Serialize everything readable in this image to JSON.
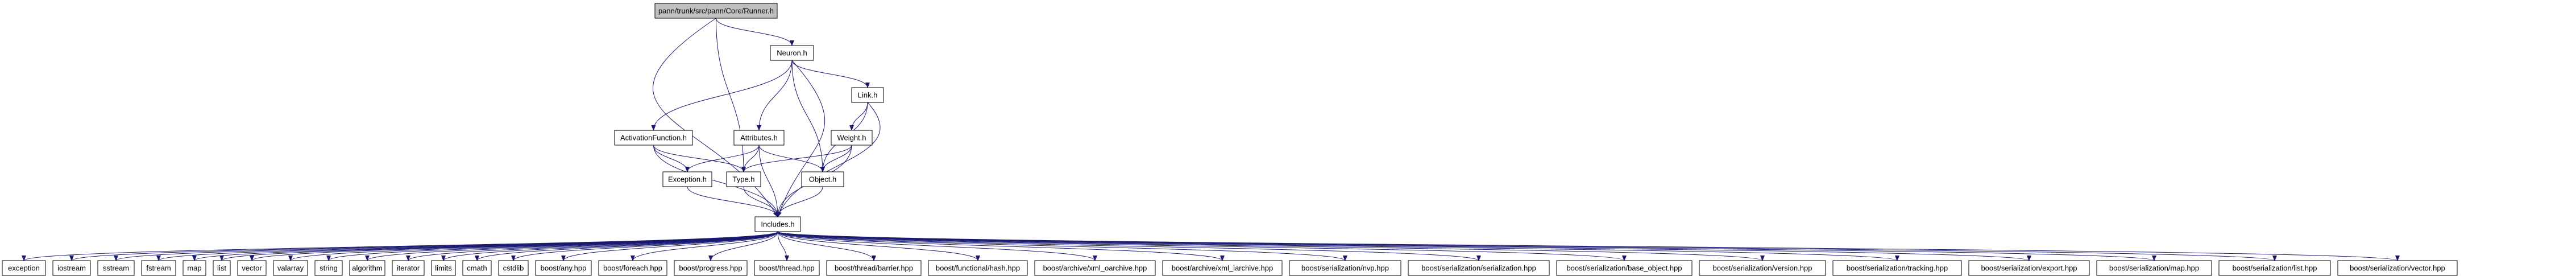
{
  "graph": {
    "edge_color": "#191970",
    "root_fill": "#bfbfbf",
    "nodes": [
      {
        "id": "runner",
        "label": "pann/trunk/src/pann/Core/Runner.h",
        "root": true
      },
      {
        "id": "neuron",
        "label": "Neuron.h"
      },
      {
        "id": "link",
        "label": "Link.h"
      },
      {
        "id": "activation",
        "label": "ActivationFunction.h"
      },
      {
        "id": "attributes",
        "label": "Attributes.h"
      },
      {
        "id": "weight",
        "label": "Weight.h"
      },
      {
        "id": "exception",
        "label": "Exception.h"
      },
      {
        "id": "type",
        "label": "Type.h"
      },
      {
        "id": "object",
        "label": "Object.h"
      },
      {
        "id": "includes",
        "label": "Includes.h"
      },
      {
        "id": "b_exception",
        "label": "exception"
      },
      {
        "id": "b_iostream",
        "label": "iostream"
      },
      {
        "id": "b_sstream",
        "label": "sstream"
      },
      {
        "id": "b_fstream",
        "label": "fstream"
      },
      {
        "id": "b_map",
        "label": "map"
      },
      {
        "id": "b_list",
        "label": "list"
      },
      {
        "id": "b_vector",
        "label": "vector"
      },
      {
        "id": "b_valarray",
        "label": "valarray"
      },
      {
        "id": "b_string",
        "label": "string"
      },
      {
        "id": "b_algorithm",
        "label": "algorithm"
      },
      {
        "id": "b_iterator",
        "label": "iterator"
      },
      {
        "id": "b_limits",
        "label": "limits"
      },
      {
        "id": "b_cmath",
        "label": "cmath"
      },
      {
        "id": "b_cstdlib",
        "label": "cstdlib"
      },
      {
        "id": "b_any",
        "label": "boost/any.hpp"
      },
      {
        "id": "b_foreach",
        "label": "boost/foreach.hpp"
      },
      {
        "id": "b_progress",
        "label": "boost/progress.hpp"
      },
      {
        "id": "b_thread",
        "label": "boost/thread.hpp"
      },
      {
        "id": "b_barrier",
        "label": "boost/thread/barrier.hpp"
      },
      {
        "id": "b_hash",
        "label": "boost/functional/hash.hpp"
      },
      {
        "id": "b_xml_oarchive",
        "label": "boost/archive/xml_oarchive.hpp"
      },
      {
        "id": "b_xml_iarchive",
        "label": "boost/archive/xml_iarchive.hpp"
      },
      {
        "id": "b_nvp",
        "label": "boost/serialization/nvp.hpp"
      },
      {
        "id": "b_serialization",
        "label": "boost/serialization/serialization.hpp"
      },
      {
        "id": "b_base_object",
        "label": "boost/serialization/base_object.hpp"
      },
      {
        "id": "b_version",
        "label": "boost/serialization/version.hpp"
      },
      {
        "id": "b_tracking",
        "label": "boost/serialization/tracking.hpp"
      },
      {
        "id": "b_export",
        "label": "boost/serialization/export.hpp"
      },
      {
        "id": "b_smap",
        "label": "boost/serialization/map.hpp"
      },
      {
        "id": "b_slist",
        "label": "boost/serialization/list.hpp"
      },
      {
        "id": "b_svector",
        "label": "boost/serialization/vector.hpp"
      }
    ],
    "edges": [
      [
        "runner",
        "neuron"
      ],
      [
        "runner",
        "type"
      ],
      [
        "runner",
        "includes"
      ],
      [
        "neuron",
        "link"
      ],
      [
        "neuron",
        "activation"
      ],
      [
        "neuron",
        "attributes"
      ],
      [
        "neuron",
        "object"
      ],
      [
        "neuron",
        "includes"
      ],
      [
        "link",
        "weight"
      ],
      [
        "link",
        "object"
      ],
      [
        "link",
        "includes"
      ],
      [
        "activation",
        "exception"
      ],
      [
        "activation",
        "type"
      ],
      [
        "activation",
        "includes"
      ],
      [
        "attributes",
        "exception"
      ],
      [
        "attributes",
        "type"
      ],
      [
        "attributes",
        "object"
      ],
      [
        "attributes",
        "includes"
      ],
      [
        "weight",
        "type"
      ],
      [
        "weight",
        "object"
      ],
      [
        "weight",
        "includes"
      ],
      [
        "exception",
        "includes"
      ],
      [
        "type",
        "includes"
      ],
      [
        "object",
        "includes"
      ],
      [
        "includes",
        "b_exception"
      ],
      [
        "includes",
        "b_iostream"
      ],
      [
        "includes",
        "b_sstream"
      ],
      [
        "includes",
        "b_fstream"
      ],
      [
        "includes",
        "b_map"
      ],
      [
        "includes",
        "b_list"
      ],
      [
        "includes",
        "b_vector"
      ],
      [
        "includes",
        "b_valarray"
      ],
      [
        "includes",
        "b_string"
      ],
      [
        "includes",
        "b_algorithm"
      ],
      [
        "includes",
        "b_iterator"
      ],
      [
        "includes",
        "b_limits"
      ],
      [
        "includes",
        "b_cmath"
      ],
      [
        "includes",
        "b_cstdlib"
      ],
      [
        "includes",
        "b_any"
      ],
      [
        "includes",
        "b_foreach"
      ],
      [
        "includes",
        "b_progress"
      ],
      [
        "includes",
        "b_thread"
      ],
      [
        "includes",
        "b_barrier"
      ],
      [
        "includes",
        "b_hash"
      ],
      [
        "includes",
        "b_xml_oarchive"
      ],
      [
        "includes",
        "b_xml_iarchive"
      ],
      [
        "includes",
        "b_nvp"
      ],
      [
        "includes",
        "b_serialization"
      ],
      [
        "includes",
        "b_base_object"
      ],
      [
        "includes",
        "b_version"
      ],
      [
        "includes",
        "b_tracking"
      ],
      [
        "includes",
        "b_export"
      ],
      [
        "includes",
        "b_smap"
      ],
      [
        "includes",
        "b_slist"
      ],
      [
        "includes",
        "b_svector"
      ]
    ]
  }
}
